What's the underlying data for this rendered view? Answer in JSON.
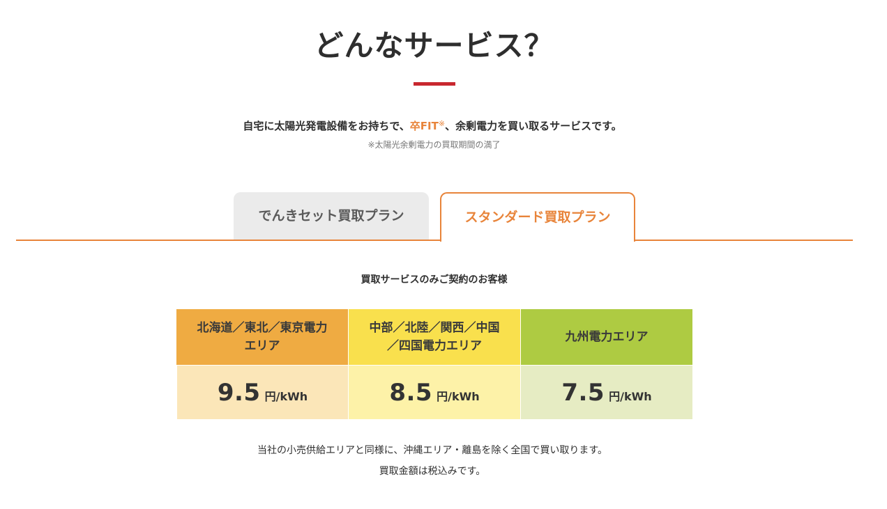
{
  "section": {
    "title": "どんなサービス？",
    "accent_color": "#c8272f"
  },
  "lead": {
    "text_before": "自宅に太陽光発電設備をお持ちで、",
    "highlight": "卒FIT",
    "mark": "※",
    "text_after": "、余剰電力を買い取るサービスです。",
    "note": "※太陽光余剰電力の買取期間の満了"
  },
  "tabs": [
    {
      "label": "でんきセット買取プラン",
      "active": false
    },
    {
      "label": "スタンダード買取プラン",
      "active": true
    }
  ],
  "tab_accent_color": "#e8843a",
  "panel": {
    "subheading": "買取サービスのみご契約のお客様",
    "areas": [
      {
        "name_line1": "北海道／東北／東京電力",
        "name_line2": "エリア",
        "price": "9.5",
        "unit": "円/kWh",
        "header_color": "#efab42",
        "price_color": "#fbe6b8"
      },
      {
        "name_line1": "中部／北陸／関西／中国",
        "name_line2": "／四国電力エリア",
        "price": "8.5",
        "unit": "円/kWh",
        "header_color": "#f9e04d",
        "price_color": "#fdf2a8"
      },
      {
        "name_line1": "九州電力エリア",
        "name_line2": "",
        "price": "7.5",
        "unit": "円/kWh",
        "header_color": "#aecb42",
        "price_color": "#e6ecc3"
      }
    ],
    "footnote_1": "当社の小売供給エリアと同様に、沖縄エリア・離島を除く全国で買い取ります。",
    "footnote_2": "買取金額は税込みです。"
  }
}
